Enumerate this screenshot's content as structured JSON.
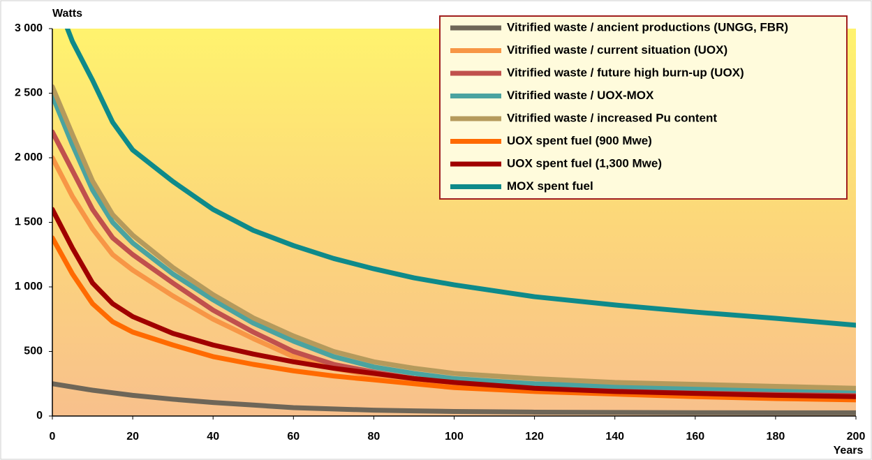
{
  "chart_data": {
    "type": "line",
    "y_label": "Watts",
    "x_label": "Years",
    "x": [
      0,
      5,
      10,
      15,
      20,
      30,
      40,
      50,
      60,
      70,
      80,
      90,
      100,
      120,
      140,
      160,
      180,
      200
    ],
    "xlim": [
      0,
      200
    ],
    "xticks": [
      0,
      20,
      40,
      60,
      80,
      100,
      120,
      140,
      160,
      180,
      200
    ],
    "ylim": [
      0,
      3000
    ],
    "yticks": [
      0,
      500,
      {
        "value": 1000,
        "label": "1 000"
      },
      {
        "value": 1500,
        "label": "1 500"
      },
      {
        "value": 2000,
        "label": "2 000"
      },
      {
        "value": 2500,
        "label": "2 500"
      },
      {
        "value": 3000,
        "label": "3 000"
      }
    ],
    "legend": "top-right",
    "series": [
      {
        "name": "Vitrified waste / ancient productions (UNGG, FBR)",
        "color": "#6e6658",
        "values": [
          250,
          225,
          200,
          180,
          160,
          130,
          105,
          85,
          65,
          55,
          45,
          40,
          35,
          30,
          28,
          26,
          25,
          25
        ]
      },
      {
        "name": "Vitrified waste / current situation (UOX)",
        "color": "#f79646",
        "values": [
          2000,
          1700,
          1450,
          1250,
          1130,
          930,
          750,
          600,
          460,
          370,
          310,
          270,
          240,
          200,
          180,
          160,
          150,
          140
        ]
      },
      {
        "name": "Vitrified waste / future high burn-up (UOX)",
        "color": "#c0504d",
        "values": [
          2200,
          1900,
          1600,
          1380,
          1250,
          1030,
          820,
          650,
          500,
          400,
          340,
          290,
          260,
          215,
          195,
          180,
          170,
          160
        ]
      },
      {
        "name": "Vitrified waste / UOX-MOX",
        "color": "#4aa3a0",
        "values": [
          2480,
          2100,
          1750,
          1500,
          1340,
          1100,
          900,
          720,
          580,
          460,
          380,
          330,
          290,
          250,
          230,
          215,
          205,
          195
        ]
      },
      {
        "name": "Vitrified waste / increased Pu content",
        "color": "#b59a5c",
        "values": [
          2550,
          2180,
          1820,
          1560,
          1400,
          1150,
          940,
          760,
          620,
          500,
          420,
          370,
          330,
          290,
          260,
          245,
          230,
          215
        ]
      },
      {
        "name": "UOX spent fuel (900 Mwe)",
        "color": "#ff6a00",
        "values": [
          1380,
          1100,
          870,
          730,
          650,
          550,
          460,
          400,
          350,
          310,
          280,
          250,
          220,
          190,
          170,
          150,
          135,
          125
        ]
      },
      {
        "name": "UOX spent fuel (1,300 Mwe)",
        "color": "#a00000",
        "values": [
          1600,
          1300,
          1030,
          870,
          770,
          640,
          550,
          480,
          420,
          370,
          330,
          290,
          260,
          215,
          190,
          175,
          160,
          150
        ]
      },
      {
        "name": "MOX spent fuel",
        "color": "#0e8a8a",
        "values": [
          3300,
          2900,
          2600,
          2275,
          2060,
          1816,
          1600,
          1438,
          1320,
          1220,
          1140,
          1070,
          1016,
          924,
          860,
          805,
          757,
          703
        ]
      }
    ]
  }
}
